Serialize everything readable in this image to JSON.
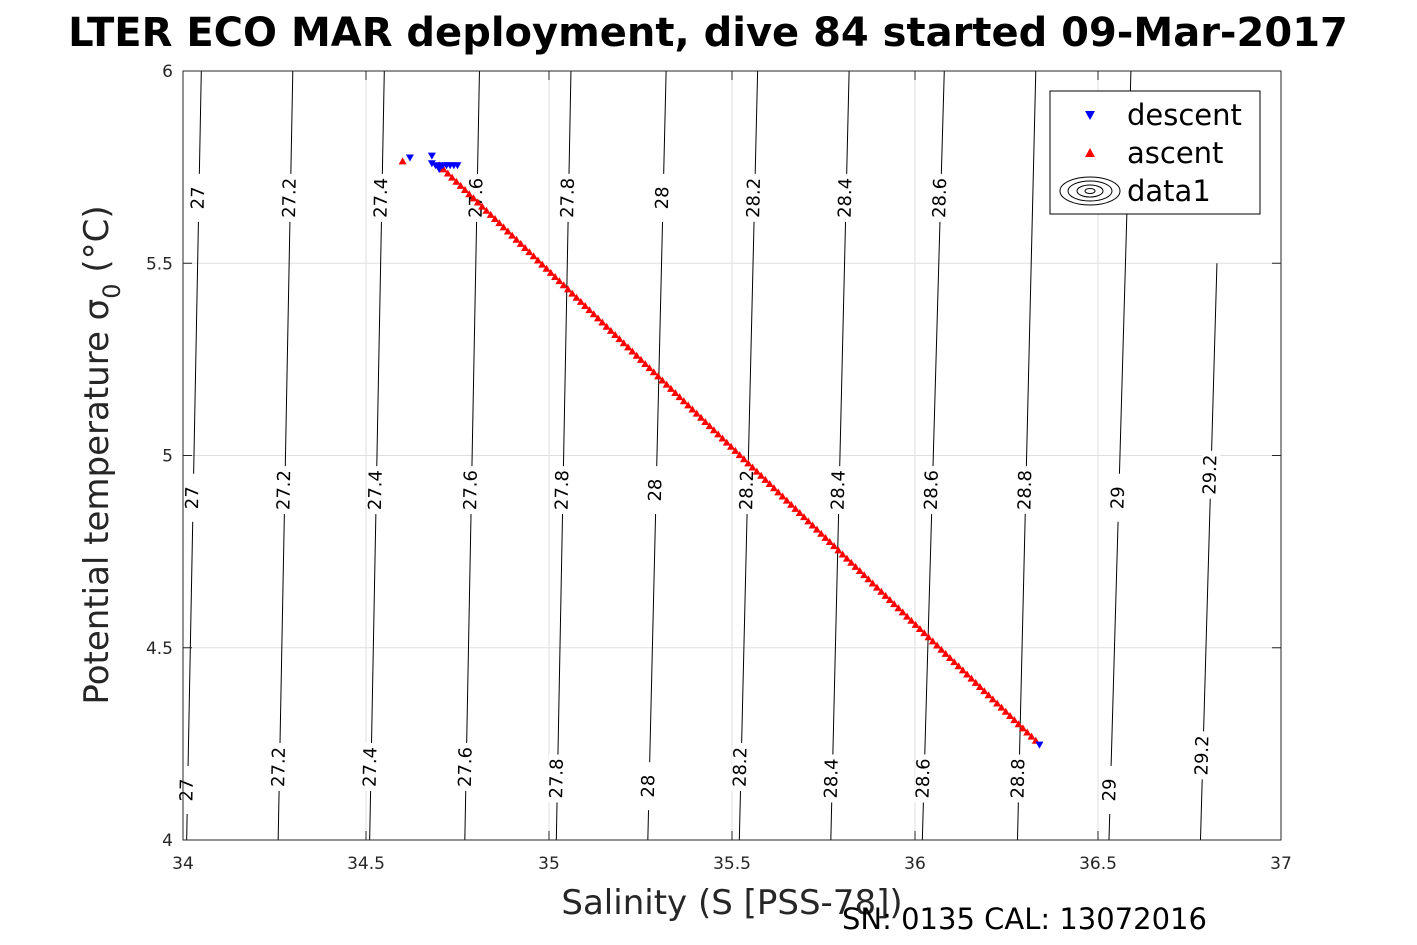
{
  "chart_data": {
    "type": "scatter",
    "title": "LTER ECO MAR deployment, dive 84 started 09-Mar-2017",
    "xlabel": "Salinity (S [PSS-78])",
    "ylabel_main": "Potential temperature ",
    "ylabel_symbol": "σ",
    "ylabel_sub": "0",
    "ylabel_unit": " (°C)",
    "xlim": [
      34,
      37
    ],
    "ylim": [
      4,
      6
    ],
    "xticks": [
      34,
      34.5,
      35,
      35.5,
      36,
      36.5,
      37
    ],
    "yticks": [
      4,
      4.5,
      5,
      5.5,
      6
    ],
    "xtick_labels": [
      "34",
      "34.5",
      "35",
      "35.5",
      "36",
      "36.5",
      "37"
    ],
    "ytick_labels": [
      "4",
      "4.5",
      "5",
      "5.5",
      "6"
    ],
    "grid": true,
    "legend_position": "top-right",
    "contours": {
      "levels": [
        27,
        27.2,
        27.4,
        27.6,
        27.8,
        28,
        28.2,
        28.4,
        28.6,
        28.8,
        29,
        29.2
      ],
      "labels": [
        "27",
        "27.2",
        "27.4",
        "27.6",
        "27.8",
        "28",
        "28.2",
        "28.4",
        "28.6",
        "28.8",
        "29",
        "29.2"
      ],
      "salinity_at_t4": [
        34.01,
        34.26,
        34.51,
        34.77,
        35.02,
        35.27,
        35.52,
        35.77,
        36.02,
        36.28,
        36.53,
        36.78
      ],
      "salinity_at_t6": [
        34.05,
        34.3,
        34.55,
        34.81,
        35.06,
        35.32,
        35.57,
        35.82,
        36.08,
        36.33,
        36.59,
        36.84
      ],
      "curve_start_t": [
        4,
        4,
        4,
        4,
        4,
        4,
        4,
        4,
        4,
        4,
        4,
        4
      ],
      "curve_end_t": [
        6,
        6,
        6,
        6,
        6,
        6,
        6,
        6,
        6,
        6,
        6,
        5.5
      ],
      "label_t": [
        [
          4.13,
          4.89,
          5.67
        ],
        [
          4.19,
          4.91,
          5.67
        ],
        [
          4.19,
          4.91,
          5.67
        ],
        [
          4.19,
          4.91,
          5.67
        ],
        [
          4.16,
          4.91,
          5.67
        ],
        [
          4.14,
          4.91,
          5.67
        ],
        [
          4.19,
          4.91,
          5.67
        ],
        [
          4.16,
          4.91,
          5.67
        ],
        [
          4.16,
          4.91,
          5.67
        ],
        [
          4.16,
          4.91
        ],
        [
          4.13,
          4.89
        ],
        [
          4.22,
          4.95
        ]
      ]
    },
    "series": [
      {
        "name": "descent",
        "marker": "triangle-down",
        "color": "#0000ff",
        "points": [
          [
            34.62,
            5.775
          ],
          [
            34.68,
            5.78
          ],
          [
            34.68,
            5.76
          ],
          [
            34.69,
            5.755
          ],
          [
            34.7,
            5.752
          ],
          [
            34.71,
            5.755
          ],
          [
            34.72,
            5.755
          ],
          [
            34.73,
            5.755
          ],
          [
            34.74,
            5.755
          ],
          [
            34.75,
            5.755
          ],
          [
            34.7,
            5.745
          ],
          [
            36.34,
            4.248
          ]
        ]
      },
      {
        "name": "ascent",
        "marker": "triangle-up",
        "color": "#ff0000",
        "start": [
          34.7,
          5.755
        ],
        "end": [
          36.33,
          4.258
        ],
        "count": 140,
        "extra_points": [
          [
            34.6,
            5.765
          ]
        ]
      }
    ],
    "legend_contour_label": "data1"
  },
  "footer": "SN: 0135  CAL: 13072016"
}
